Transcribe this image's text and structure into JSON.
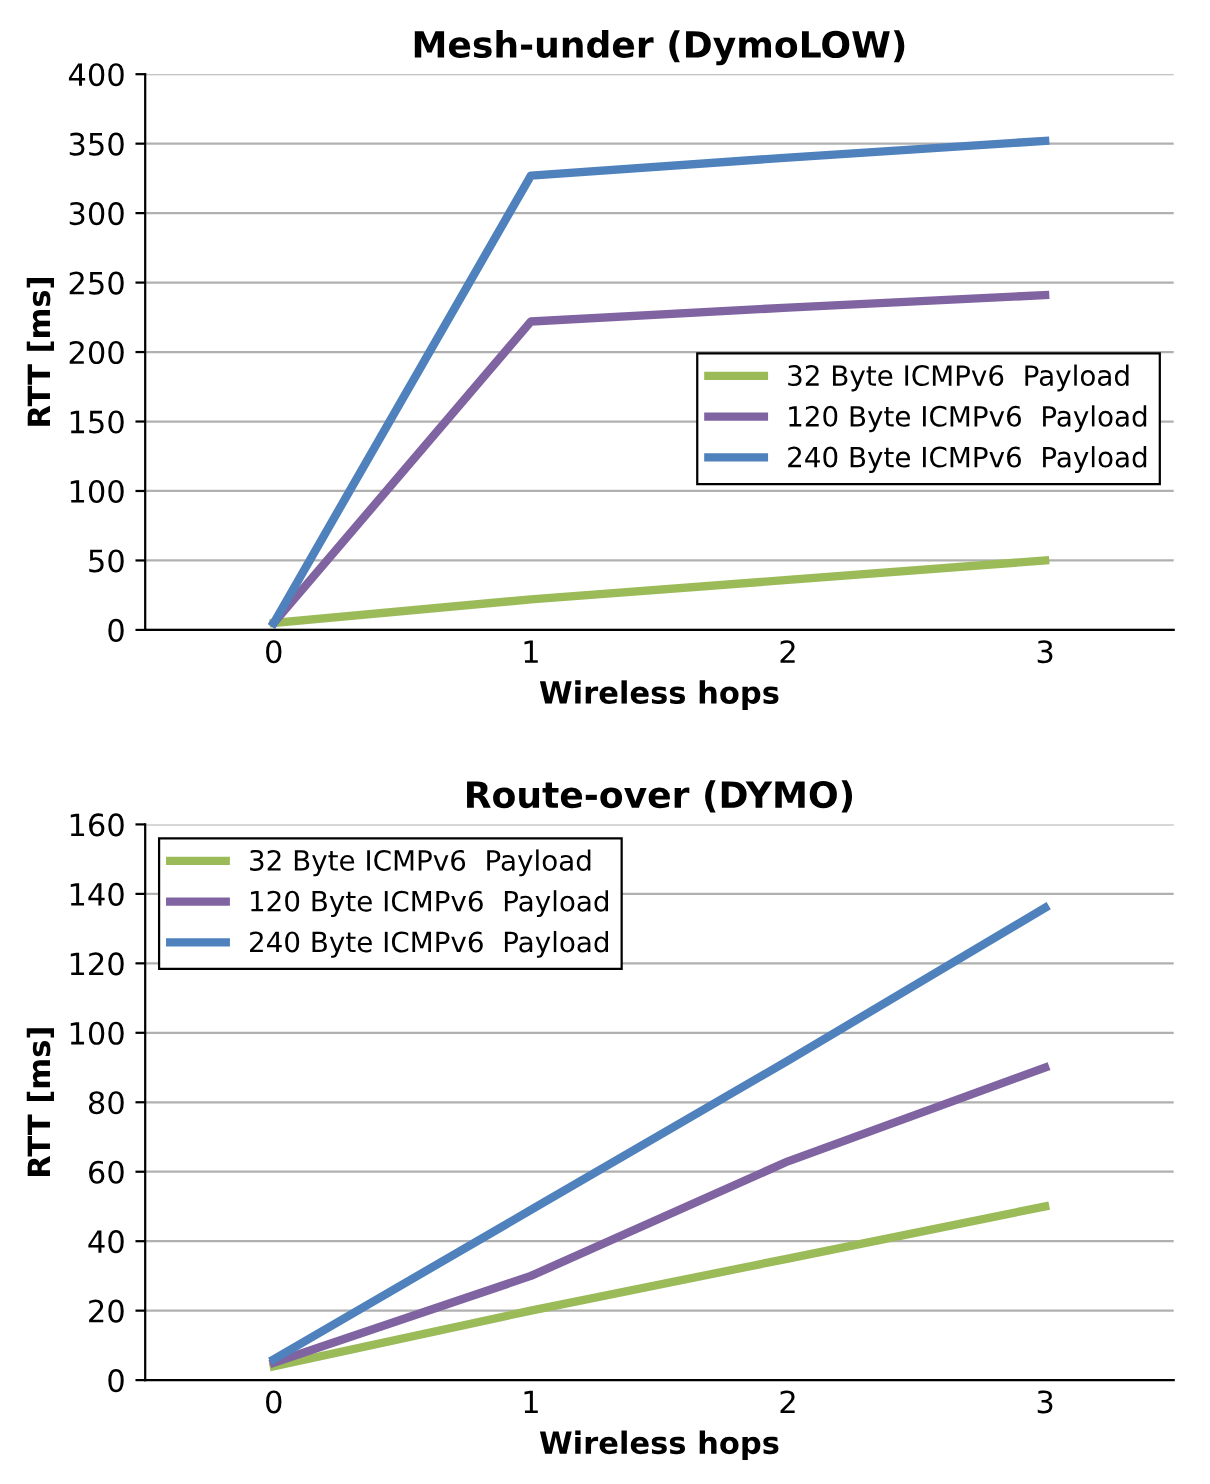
{
  "chart_data": [
    {
      "type": "line",
      "title": "Mesh-under (DymoLOW)",
      "xlabel": "Wireless hops",
      "ylabel": "RTT [ms]",
      "categories": [
        "0",
        "1",
        "2",
        "3"
      ],
      "series": [
        {
          "name": "32 Byte ICMPv6  Payload",
          "color": "#9bbb59",
          "values": [
            5,
            22,
            36,
            50
          ]
        },
        {
          "name": "120 Byte ICMPv6  Payload",
          "color": "#8064a2",
          "values": [
            5,
            222,
            232,
            241
          ]
        },
        {
          "name": "240 Byte ICMPv6  Payload",
          "color": "#4f81bd",
          "values": [
            5,
            327,
            340,
            352
          ]
        }
      ],
      "ylim": [
        0,
        400
      ],
      "yticks": [
        0,
        50,
        100,
        150,
        200,
        250,
        300,
        350,
        400
      ],
      "grid": "y",
      "legend": "right",
      "marker": "none",
      "line_style": "solid"
    },
    {
      "type": "line",
      "title": "Route-over (DYMO)",
      "xlabel": "Wireless hops",
      "ylabel": "RTT [ms]",
      "categories": [
        "0",
        "1",
        "2",
        "3"
      ],
      "series": [
        {
          "name": "32 Byte ICMPv6  Payload",
          "color": "#9bbb59",
          "values": [
            4,
            20,
            35,
            50
          ]
        },
        {
          "name": "120 Byte ICMPv6  Payload",
          "color": "#8064a2",
          "values": [
            5,
            30,
            63,
            90
          ]
        },
        {
          "name": "240 Byte ICMPv6  Payload",
          "color": "#4f81bd",
          "values": [
            6,
            49,
            92,
            136
          ]
        }
      ],
      "ylim": [
        0,
        160
      ],
      "yticks": [
        0,
        20,
        40,
        60,
        80,
        100,
        120,
        140,
        160
      ],
      "grid": "y",
      "legend": "top left",
      "marker": "none",
      "line_style": "solid"
    }
  ]
}
